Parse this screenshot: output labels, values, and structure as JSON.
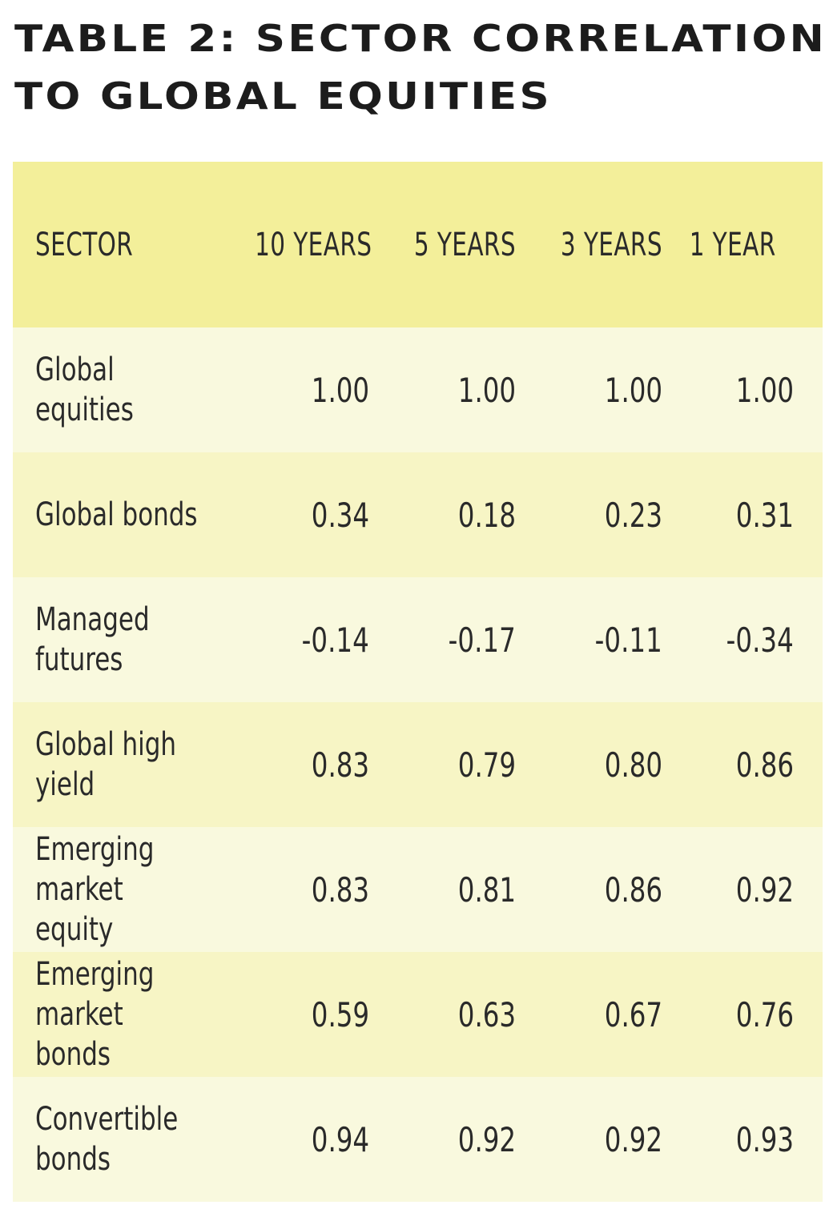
{
  "title": {
    "line1": "TABLE 2: SECTOR CORRELATION",
    "line2": "TO GLOBAL EQUITIES"
  },
  "colors": {
    "header_bg": "#f3ef9a",
    "row_light": "#f9f9de",
    "row_dark": "#f7f5c5",
    "text": "#2a2a2a"
  },
  "chart_data": {
    "type": "table",
    "title": "TABLE 2: SECTOR CORRELATION TO GLOBAL EQUITIES",
    "columns": [
      "SECTOR",
      "10 YEARS",
      "5 YEARS",
      "3 YEARS",
      "1 YEAR"
    ],
    "rows": [
      {
        "sector": "Global\nequities",
        "values": [
          "1.00",
          "1.00",
          "1.00",
          "1.00"
        ]
      },
      {
        "sector": "Global bonds",
        "values": [
          "0.34",
          "0.18",
          "0.23",
          "0.31"
        ]
      },
      {
        "sector": "Managed\nfutures",
        "values": [
          "-0.14",
          "-0.17",
          "-0.11",
          "-0.34"
        ]
      },
      {
        "sector": "Global high\nyield",
        "values": [
          "0.83",
          "0.79",
          "0.80",
          "0.86"
        ]
      },
      {
        "sector": "Emerging\nmarket equity",
        "values": [
          "0.83",
          "0.81",
          "0.86",
          "0.92"
        ]
      },
      {
        "sector": "Emerging\nmarket bonds",
        "values": [
          "0.59",
          "0.63",
          "0.67",
          "0.76"
        ]
      },
      {
        "sector": "Convertible\nbonds",
        "values": [
          "0.94",
          "0.92",
          "0.92",
          "0.93"
        ]
      }
    ]
  }
}
